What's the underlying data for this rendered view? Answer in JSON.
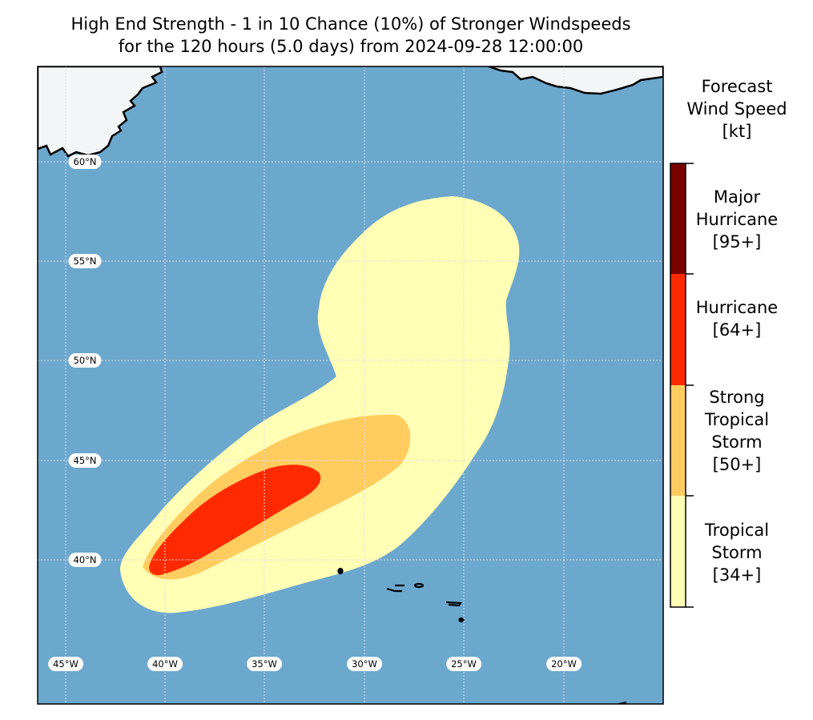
{
  "title": {
    "line1": "High End Strength - 1 in 10 Chance (10%) of Stronger Windspeeds",
    "line2": "for the 120 hours (5.0 days) from 2024-09-28 12:00:00"
  },
  "colorbar": {
    "title_lines": [
      "Forecast",
      "Wind Speed",
      "[kt]"
    ],
    "categories": [
      {
        "name": "major-hurricane",
        "lines": [
          "Major",
          "Hurricane",
          "[95+]"
        ],
        "color": "#7a0000",
        "threshold_kt": 95
      },
      {
        "name": "hurricane",
        "lines": [
          "Hurricane",
          "[64+]"
        ],
        "color": "#ff2a00",
        "threshold_kt": 64
      },
      {
        "name": "strong-tropical-storm",
        "lines": [
          "Strong",
          "Tropical",
          "Storm",
          "[50+]"
        ],
        "color": "#ffcc5f",
        "threshold_kt": 50
      },
      {
        "name": "tropical-storm",
        "lines": [
          "Tropical",
          "Storm",
          "[34+]"
        ],
        "color": "#ffffb5",
        "threshold_kt": 34
      }
    ]
  },
  "map": {
    "ocean_color": "#6ca7cd",
    "land_color": "#f4f5f7",
    "lat_labels": [
      "60°N",
      "55°N",
      "50°N",
      "45°N",
      "40°N"
    ],
    "lon_labels": [
      "45°W",
      "40°W",
      "35°W",
      "30°W",
      "25°W",
      "20°W"
    ]
  }
}
